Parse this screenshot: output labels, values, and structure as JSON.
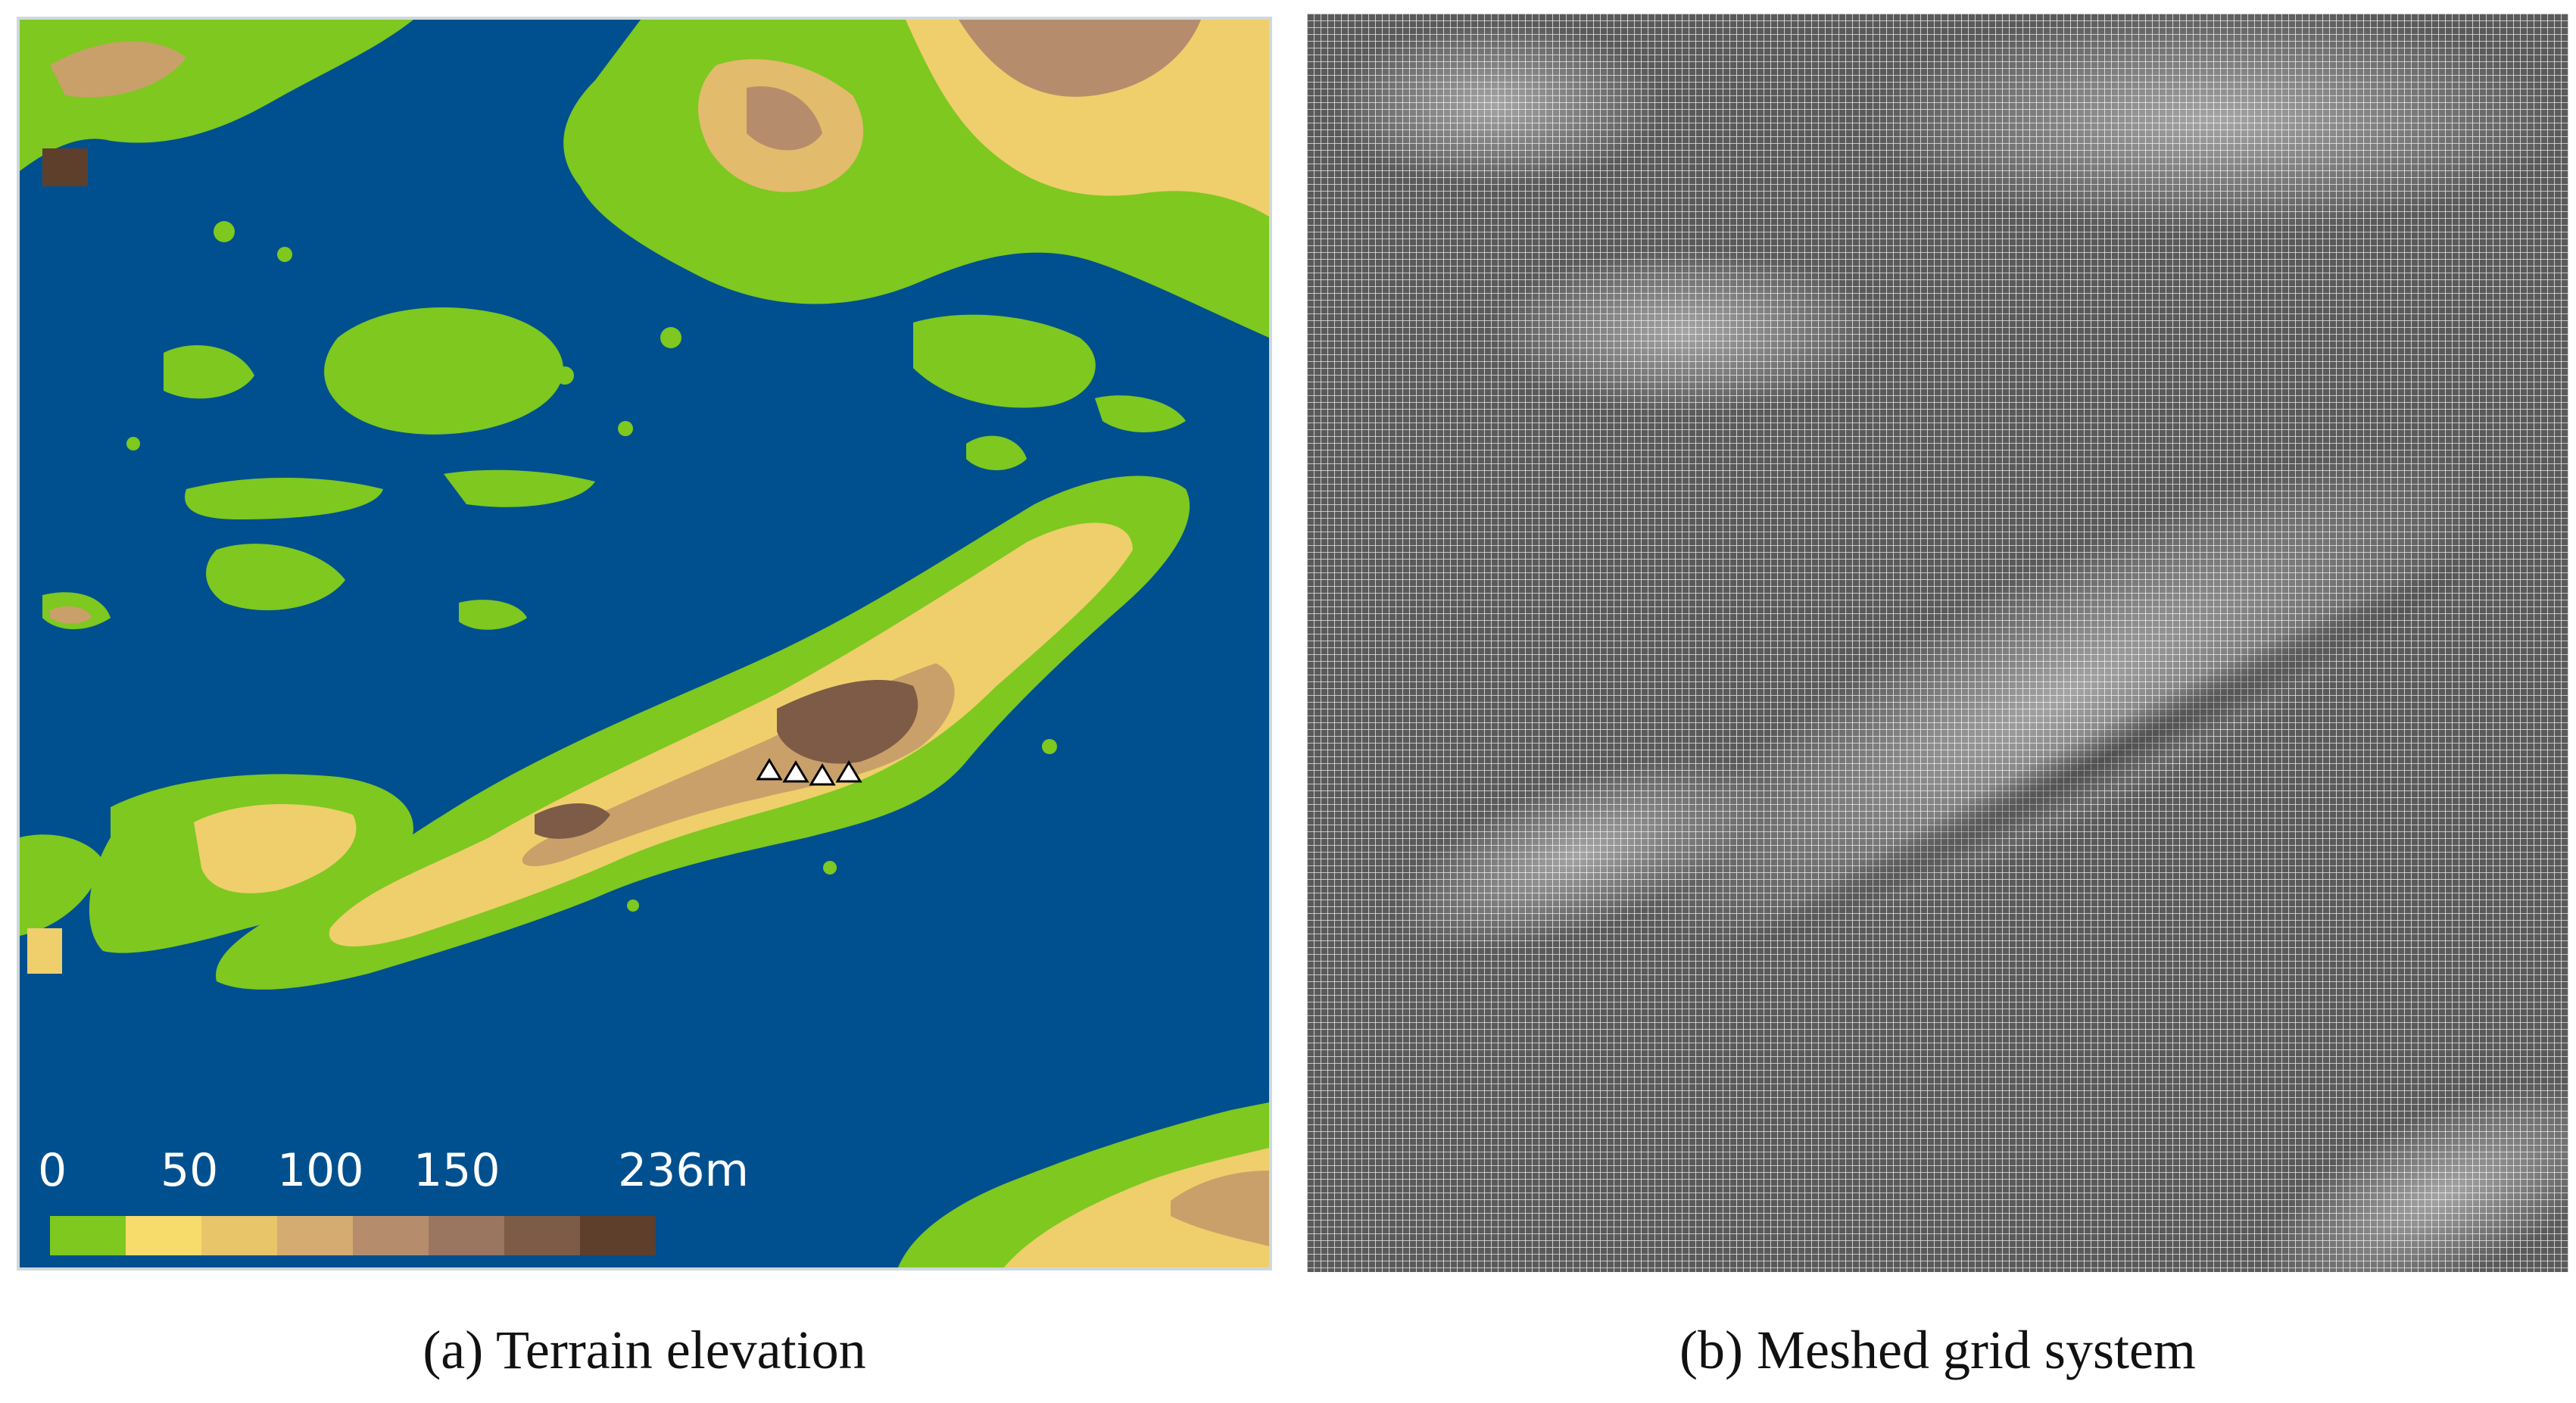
{
  "figure": {
    "panel_a": {
      "caption": "(a) Terrain elevation",
      "legend": {
        "ticks": [
          "0",
          "50",
          "100",
          "150",
          "236m"
        ],
        "colors": [
          "#7ec820",
          "#f7dc6c",
          "#e9c56a",
          "#d6ab72",
          "#b58d6d",
          "#9a7560",
          "#7d5b47",
          "#5e3f2c"
        ]
      },
      "colors": {
        "water": "#00508f",
        "lowland": "#7ec820",
        "highland": "#9a7560",
        "peak": "#5e3f2c"
      },
      "marker_icon": "triangle-marker-icon"
    },
    "panel_b": {
      "caption": "(b) Meshed grid system",
      "colors": {
        "background": "#8a8a8a",
        "gridline": "#f0f0f0",
        "dense": "#2c2c2c"
      }
    }
  }
}
